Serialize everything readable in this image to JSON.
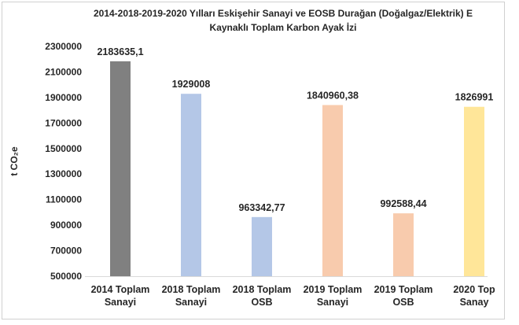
{
  "chart_data": {
    "type": "bar",
    "title_lines": [
      "2014-2018-2019-2020 Yılları Eskişehir Sanayi ve EOSB Durağan (Doğalgaz/Elektrik) E",
      "Kaynaklı Toplam Karbon Ayak İzi"
    ],
    "ylabel": "t CO₂e",
    "xlabel": "",
    "ylim": [
      500000,
      2300000
    ],
    "yticks": [
      "500000",
      "700000",
      "900000",
      "1100000",
      "1300000",
      "1500000",
      "1700000",
      "1900000",
      "2100000",
      "2300000"
    ],
    "grid": false,
    "legend": "none",
    "categories": [
      [
        "2014 Toplam",
        "Sanayi"
      ],
      [
        "2018 Toplam",
        "Sanayi"
      ],
      [
        "2018 Toplam",
        "OSB"
      ],
      [
        "2019 Toplam",
        "Sanayi"
      ],
      [
        "2019 Toplam",
        "OSB"
      ],
      [
        "2020 Top",
        "Sanay"
      ]
    ],
    "values": [
      2183635.1,
      1929008,
      963342.77,
      1840960.38,
      992588.44,
      1826991
    ],
    "labels": [
      "2183635,1",
      "1929008",
      "963342,77",
      "1840960,38",
      "992588,44",
      "1826991"
    ],
    "colors": [
      "#808080",
      "#b4c7e7",
      "#b4c7e7",
      "#f8cbad",
      "#f8cbad",
      "#ffe699"
    ]
  }
}
